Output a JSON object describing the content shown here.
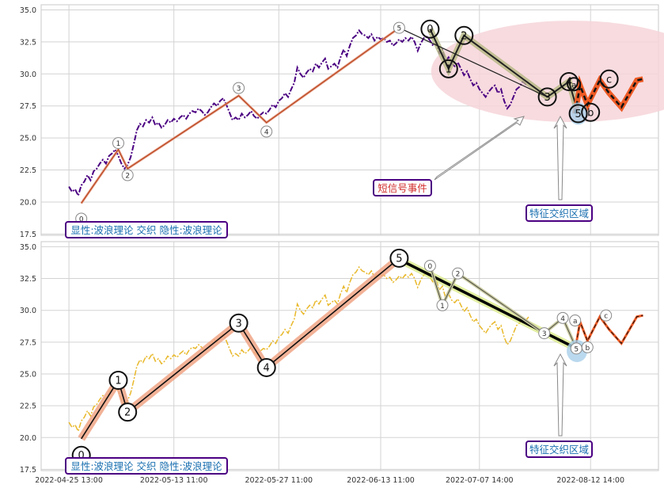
{
  "chart_data": {
    "type": "line",
    "shared_x_ticks": [
      "2022-04-25 13:00",
      "2022-05-13 11:00",
      "2022-05-27 11:00",
      "2022-06-13 11:00",
      "2022-07-07 14:00",
      "2022-08-12 14:00"
    ],
    "y_ticks": [
      "17.5",
      "20.0",
      "22.5",
      "25.0",
      "27.5",
      "30.0",
      "32.5",
      "35.0"
    ],
    "ylim": [
      17.4,
      35.4
    ],
    "xlim": [
      0,
      100
    ],
    "grid": true,
    "panels": [
      {
        "name": "top",
        "price_color": "#4b0082",
        "style": "dash-dot",
        "highlight_ellipse_color": "#f6d5d9",
        "label_box": "显性:波浪理论 交织 隐性:波浪理论",
        "annotation_event": "短信号事件",
        "annotation_zone": "特征交织区域"
      },
      {
        "name": "bottom",
        "price_color": "#e8b82a",
        "style": "dash-dot",
        "label_box": "显性:波浪理论 交织 隐性:波浪理论",
        "annotation_zone": "特征交织区域"
      }
    ],
    "price_series": [
      [
        4.5,
        21.2
      ],
      [
        5.0,
        20.8
      ],
      [
        5.5,
        21.0
      ],
      [
        6.0,
        20.5
      ],
      [
        6.5,
        21.3
      ],
      [
        7.0,
        21.6
      ],
      [
        7.5,
        22.1
      ],
      [
        8.0,
        21.7
      ],
      [
        8.5,
        22.4
      ],
      [
        9.0,
        22.6
      ],
      [
        9.5,
        23.0
      ],
      [
        10.0,
        23.3
      ],
      [
        10.5,
        23.0
      ],
      [
        11.0,
        23.6
      ],
      [
        11.5,
        23.8
      ],
      [
        12.0,
        24.1
      ],
      [
        12.5,
        23.6
      ],
      [
        13.0,
        23.0
      ],
      [
        13.5,
        22.6
      ],
      [
        14.0,
        22.9
      ],
      [
        14.5,
        23.5
      ],
      [
        15.0,
        24.5
      ],
      [
        15.5,
        25.6
      ],
      [
        16.0,
        26.1
      ],
      [
        16.5,
        25.9
      ],
      [
        17.0,
        26.4
      ],
      [
        17.5,
        26.2
      ],
      [
        18.0,
        26.6
      ],
      [
        18.5,
        26.0
      ],
      [
        19.0,
        26.2
      ],
      [
        19.5,
        25.8
      ],
      [
        20.0,
        26.0
      ],
      [
        20.5,
        26.4
      ],
      [
        21.0,
        26.2
      ],
      [
        21.5,
        26.5
      ],
      [
        22.0,
        26.3
      ],
      [
        22.5,
        26.6
      ],
      [
        23.0,
        26.8
      ],
      [
        23.5,
        26.5
      ],
      [
        24.0,
        26.9
      ],
      [
        24.5,
        27.1
      ],
      [
        25.0,
        27.0
      ],
      [
        25.5,
        27.3
      ],
      [
        26.0,
        27.1
      ],
      [
        26.5,
        26.8
      ],
      [
        27.0,
        27.0
      ],
      [
        27.5,
        27.4
      ],
      [
        28.0,
        27.7
      ],
      [
        28.5,
        27.5
      ],
      [
        29.0,
        27.9
      ],
      [
        29.5,
        28.1
      ],
      [
        30.0,
        27.6
      ],
      [
        30.5,
        27.0
      ],
      [
        31.0,
        26.4
      ],
      [
        31.5,
        26.6
      ],
      [
        32.0,
        26.4
      ],
      [
        32.5,
        26.9
      ],
      [
        33.0,
        26.6
      ],
      [
        33.5,
        26.8
      ],
      [
        34.0,
        27.1
      ],
      [
        34.5,
        26.7
      ],
      [
        35.0,
        26.5
      ],
      [
        35.5,
        26.8
      ],
      [
        36.0,
        27.0
      ],
      [
        36.5,
        26.9
      ],
      [
        37.0,
        27.2
      ],
      [
        37.5,
        27.6
      ],
      [
        38.0,
        27.4
      ],
      [
        38.5,
        27.9
      ],
      [
        39.0,
        28.1
      ],
      [
        39.5,
        28.5
      ],
      [
        40.0,
        28.2
      ],
      [
        40.5,
        28.8
      ],
      [
        41.0,
        29.3
      ],
      [
        41.5,
        30.5
      ],
      [
        42.0,
        30.0
      ],
      [
        42.5,
        29.7
      ],
      [
        43.0,
        30.1
      ],
      [
        43.5,
        30.4
      ],
      [
        44.0,
        30.2
      ],
      [
        44.5,
        30.8
      ],
      [
        45.0,
        30.5
      ],
      [
        45.5,
        30.9
      ],
      [
        46.0,
        31.2
      ],
      [
        46.5,
        30.4
      ],
      [
        47.0,
        30.6
      ],
      [
        47.5,
        30.8
      ],
      [
        48.0,
        30.5
      ],
      [
        48.5,
        31.3
      ],
      [
        49.0,
        31.9
      ],
      [
        49.5,
        31.4
      ],
      [
        50.0,
        32.2
      ],
      [
        50.5,
        32.8
      ],
      [
        51.0,
        33.0
      ],
      [
        51.5,
        33.4
      ],
      [
        52.0,
        33.1
      ],
      [
        52.5,
        33.0
      ],
      [
        53.0,
        32.8
      ],
      [
        53.5,
        33.1
      ],
      [
        54.0,
        32.6
      ],
      [
        54.5,
        32.9
      ],
      [
        55.0,
        32.7
      ],
      [
        55.5,
        32.8
      ],
      [
        56.0,
        32.5
      ],
      [
        56.5,
        32.6
      ],
      [
        57.0,
        32.2
      ],
      [
        57.5,
        32.4
      ],
      [
        58.0,
        32.7
      ],
      [
        58.5,
        32.5
      ],
      [
        59.0,
        32.8
      ],
      [
        59.5,
        32.6
      ],
      [
        60.0,
        32.9
      ],
      [
        60.5,
        32.5
      ],
      [
        61.0,
        31.8
      ],
      [
        61.5,
        32.4
      ],
      [
        62.0,
        32.8
      ],
      [
        62.5,
        32.9
      ],
      [
        63.0,
        32.6
      ],
      [
        63.5,
        32.2
      ],
      [
        64.0,
        32.4
      ],
      [
        64.5,
        31.6
      ],
      [
        65.0,
        31.9
      ],
      [
        65.5,
        31.0
      ],
      [
        66.0,
        31.3
      ],
      [
        66.5,
        30.8
      ],
      [
        67.0,
        30.6
      ],
      [
        67.5,
        30.9
      ],
      [
        68.0,
        30.4
      ],
      [
        68.5,
        29.9
      ],
      [
        69.0,
        30.2
      ],
      [
        69.5,
        29.6
      ],
      [
        70.0,
        29.1
      ],
      [
        70.5,
        29.3
      ],
      [
        71.0,
        28.8
      ],
      [
        71.5,
        28.5
      ],
      [
        72.0,
        28.2
      ],
      [
        72.5,
        28.6
      ],
      [
        73.0,
        28.9
      ],
      [
        73.5,
        29.1
      ],
      [
        74.0,
        28.5
      ],
      [
        74.5,
        28.8
      ],
      [
        75.0,
        27.9
      ],
      [
        75.5,
        27.3
      ],
      [
        76.0,
        27.6
      ],
      [
        76.5,
        28.2
      ],
      [
        77.0,
        28.8
      ],
      [
        77.5,
        29.0
      ],
      [
        78.0,
        29.4
      ],
      [
        78.5,
        29.2
      ],
      [
        79.0,
        29.5
      ]
    ],
    "top_wave": [
      {
        "label": "0",
        "x": 6.5,
        "y": 19.9
      },
      {
        "label": "1",
        "x": 12.5,
        "y": 24.1
      },
      {
        "label": "2",
        "x": 14.0,
        "y": 22.6
      },
      {
        "label": "3",
        "x": 32.0,
        "y": 28.3
      },
      {
        "label": "4",
        "x": 36.5,
        "y": 26.2
      },
      {
        "label": "5",
        "x": 58.0,
        "y": 33.6
      },
      {
        "label": "3",
        "x": 82.0,
        "y": 28.2
      },
      {
        "label": "4",
        "x": 85.0,
        "y": 29.0
      },
      {
        "label": "5",
        "x": 86.5,
        "y": 26.8
      }
    ],
    "top_wave_labels": [
      {
        "label": "0",
        "x": 6.5,
        "y": 18.7
      },
      {
        "label": "1",
        "x": 12.5,
        "y": 24.6
      },
      {
        "label": "2",
        "x": 14.0,
        "y": 22.1
      },
      {
        "label": "3",
        "x": 32.0,
        "y": 28.9
      },
      {
        "label": "4",
        "x": 36.5,
        "y": 25.5
      },
      {
        "label": "5",
        "x": 58.0,
        "y": 33.6
      }
    ],
    "top_wave2": [
      {
        "label": "0",
        "x": 63.0,
        "y": 33.5
      },
      {
        "label": "1",
        "x": 66.0,
        "y": 30.4
      },
      {
        "label": "2",
        "x": 68.5,
        "y": 33.0
      },
      {
        "label": "3",
        "x": 82.0,
        "y": 28.2
      },
      {
        "label": "4",
        "x": 85.5,
        "y": 29.4
      },
      {
        "label": "a",
        "x": 86.3,
        "y": 29.2
      },
      {
        "label": "5",
        "x": 87.0,
        "y": 26.9
      },
      {
        "label": "b",
        "x": 89.0,
        "y": 27.0
      },
      {
        "label": "c",
        "x": 92.0,
        "y": 29.6
      }
    ],
    "orange_path": [
      [
        86.5,
        26.9
      ],
      [
        87.3,
        29.1
      ],
      [
        88.5,
        27.6
      ],
      [
        90.5,
        29.5
      ],
      [
        92.0,
        28.5
      ],
      [
        94.0,
        27.4
      ],
      [
        96.5,
        29.5
      ],
      [
        97.5,
        29.6
      ]
    ],
    "bottom_wave": [
      {
        "label": "0",
        "x": 6.5,
        "y": 19.9
      },
      {
        "label": "1",
        "x": 12.5,
        "y": 24.5
      },
      {
        "label": "2",
        "x": 14.0,
        "y": 22.0
      },
      {
        "label": "3",
        "x": 32.0,
        "y": 29.0
      },
      {
        "label": "4",
        "x": 36.5,
        "y": 25.5
      },
      {
        "label": "5",
        "x": 58.0,
        "y": 34.1
      }
    ],
    "bottom_secondary": [
      {
        "label": "0",
        "x": 63.0,
        "y": 33.5
      },
      {
        "label": "1",
        "x": 65.0,
        "y": 30.4
      },
      {
        "label": "2",
        "x": 67.5,
        "y": 32.9
      },
      {
        "label": "3",
        "x": 81.5,
        "y": 28.2
      },
      {
        "label": "4",
        "x": 84.5,
        "y": 29.4
      },
      {
        "label": "a",
        "x": 86.5,
        "y": 29.2
      },
      {
        "label": "5",
        "x": 86.7,
        "y": 27.0
      },
      {
        "label": "b",
        "x": 88.5,
        "y": 27.1
      },
      {
        "label": "c",
        "x": 91.5,
        "y": 29.6
      }
    ]
  }
}
